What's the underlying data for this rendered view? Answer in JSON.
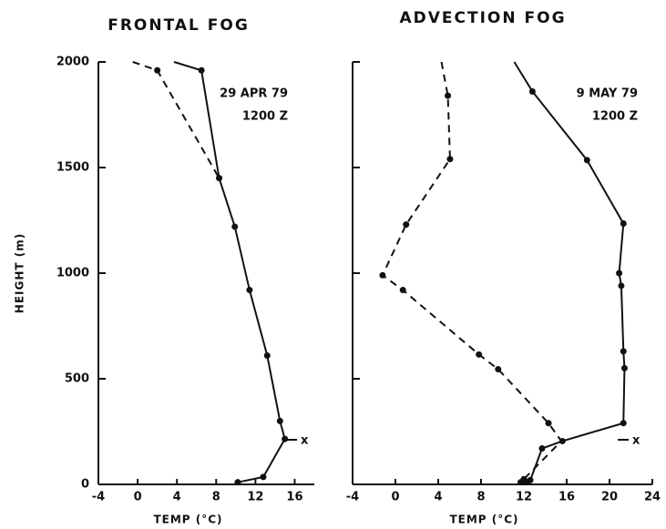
{
  "chart_data": [
    {
      "type": "line",
      "title": "FRONTAL FOG",
      "xlabel": "TEMP (°C)",
      "ylabel": "HEIGHT (m)",
      "xlim": [
        -4,
        18
      ],
      "xticks": [
        -4,
        0,
        4,
        8,
        12,
        16
      ],
      "ylim": [
        0,
        2000
      ],
      "yticks": [
        0,
        500,
        1000,
        1500,
        2000
      ],
      "ytick_labels": true,
      "annotations": [
        "29 APR 79",
        "1200 Z",
        "x"
      ],
      "series": [
        {
          "color": "#111111",
          "dash": false,
          "x": [
            3.7,
            6.5,
            8.3,
            9.9,
            11.4,
            13.2,
            14.5,
            15.0,
            12.8,
            10.2
          ],
          "values": [
            2000,
            1960,
            1450,
            1220,
            920,
            610,
            300,
            215,
            35,
            10
          ],
          "markers": [
            false,
            true,
            true,
            true,
            true,
            true,
            true,
            true,
            true,
            true
          ]
        },
        {
          "color": "#111111",
          "dash": true,
          "x": [
            -0.5,
            2.0,
            8.3
          ],
          "values": [
            2000,
            1960,
            1450
          ],
          "markers": [
            false,
            true,
            false
          ]
        }
      ]
    },
    {
      "type": "line",
      "title": "ADVECTION FOG",
      "xlabel": "TEMP (°C)",
      "xlim": [
        -4,
        24
      ],
      "xticks": [
        -4,
        0,
        4,
        8,
        12,
        16,
        20,
        24
      ],
      "ylim": [
        0,
        2000
      ],
      "yticks": [
        0,
        500,
        1000,
        1500,
        2000
      ],
      "ytick_labels": false,
      "annotations": [
        "9 MAY 79",
        "1200 Z",
        "x"
      ],
      "series": [
        {
          "color": "#111111",
          "dash": false,
          "x": [
            11.1,
            12.8,
            17.9,
            21.3,
            20.9,
            21.1,
            21.3,
            21.4,
            21.3,
            15.6,
            13.7,
            12.6,
            12.3
          ],
          "values": [
            2000,
            1860,
            1535,
            1235,
            1000,
            940,
            630,
            550,
            290,
            205,
            170,
            20,
            10
          ],
          "markers": [
            false,
            true,
            true,
            true,
            true,
            true,
            true,
            true,
            true,
            true,
            true,
            true,
            true
          ]
        },
        {
          "color": "#111111",
          "dash": true,
          "x": [
            4.3,
            4.9,
            5.1,
            1.0,
            -1.2,
            0.7,
            7.8,
            9.6,
            14.3,
            15.5,
            12.0,
            11.7
          ],
          "values": [
            2000,
            1840,
            1540,
            1230,
            990,
            920,
            615,
            545,
            290,
            205,
            25,
            10
          ],
          "markers": [
            false,
            true,
            true,
            true,
            true,
            true,
            true,
            true,
            true,
            false,
            true,
            true
          ]
        }
      ]
    }
  ]
}
